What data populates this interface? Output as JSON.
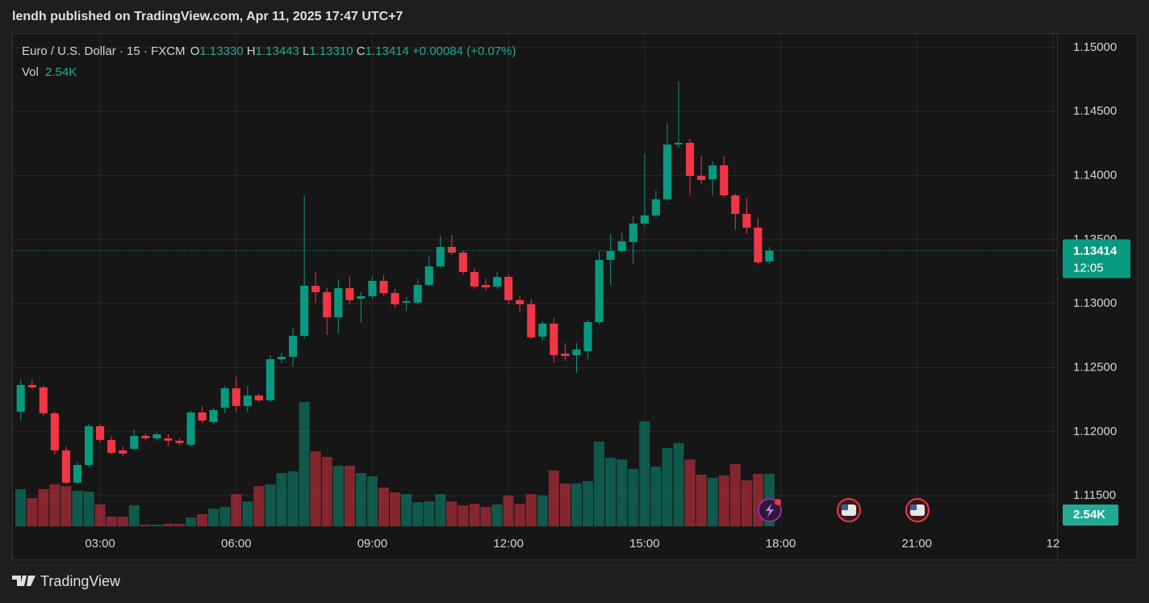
{
  "header": {
    "text": "lendh published on TradingView.com, Apr 11, 2025 17:47 UTC+7"
  },
  "footer": {
    "brand": "TradingView"
  },
  "chart_data": {
    "type": "candlestick",
    "legend": {
      "symbol": "Euro / U.S. Dollar · 15 · FXCM",
      "o_label": "O",
      "open": "1.13330",
      "h_label": "H",
      "high": "1.13443",
      "l_label": "L",
      "low": "1.13310",
      "c_label": "C",
      "close": "1.13414",
      "change": "+0.00084 (+0.07%)",
      "vol_label": "Vol",
      "volume": "2.54K"
    },
    "last_price_label": "1.13414",
    "countdown": "12:05",
    "volume_axis_label": "2.54K",
    "up_color": "#089981",
    "down_color": "#f23645",
    "grid": true,
    "x": [
      1.25,
      1.5,
      1.75,
      2,
      2.25,
      2.5,
      2.75,
      3,
      3.25,
      3.5,
      3.75,
      4,
      4.25,
      4.5,
      4.75,
      5,
      5.25,
      5.5,
      5.75,
      6,
      6.25,
      6.5,
      6.75,
      7,
      7.25,
      7.5,
      7.75,
      8,
      8.25,
      8.5,
      8.75,
      9,
      9.25,
      9.5,
      9.75,
      10,
      10.25,
      10.5,
      10.75,
      11,
      11.25,
      11.5,
      11.75,
      12,
      12.25,
      12.5,
      12.75,
      13,
      13.25,
      13.5,
      13.75,
      14,
      14.25,
      14.5,
      14.75,
      15,
      15.25,
      15.5,
      15.75,
      16,
      16.25,
      16.5,
      16.75,
      17,
      17.25,
      17.5,
      17.75
    ],
    "open": [
      1.12156,
      1.12365,
      1.12346,
      1.12144,
      1.11854,
      1.11602,
      1.1174,
      1.12043,
      1.11936,
      1.11854,
      1.11866,
      1.11967,
      1.11948,
      1.11948,
      1.1193,
      1.11898,
      1.1215,
      1.12075,
      1.12188,
      1.12339,
      1.12201,
      1.12283,
      1.12245,
      1.12566,
      1.12585,
      1.12749,
      1.1314,
      1.1309,
      1.12894,
      1.13121,
      1.13039,
      1.13058,
      1.13178,
      1.13083,
      1.13008,
      1.13008,
      1.13146,
      1.13291,
      1.13443,
      1.13399,
      1.13247,
      1.13146,
      1.13134,
      1.13209,
      1.13027,
      1.12995,
      1.12743,
      1.12844,
      1.1261,
      1.12598,
      1.12629,
      1.12856,
      1.13342,
      1.13411,
      1.13481,
      1.13626,
      1.13689,
      1.13815,
      1.14243,
      1.14256,
      1.13998,
      1.13972,
      1.1408,
      1.13846,
      1.13701,
      1.13594,
      1.1333
    ],
    "high": [
      1.12409,
      1.12409,
      1.12358,
      1.12156,
      1.11885,
      1.11766,
      1.12062,
      1.12056,
      1.11967,
      1.11885,
      1.12018,
      1.11986,
      1.11993,
      1.1198,
      1.11948,
      1.12163,
      1.12201,
      1.12188,
      1.12358,
      1.12428,
      1.12358,
      1.12295,
      1.12598,
      1.12617,
      1.12812,
      1.13846,
      1.13247,
      1.13127,
      1.1319,
      1.13216,
      1.1309,
      1.13209,
      1.13222,
      1.13115,
      1.13052,
      1.13197,
      1.13367,
      1.13531,
      1.13537,
      1.13417,
      1.13279,
      1.13197,
      1.13247,
      1.13228,
      1.13058,
      1.13039,
      1.12863,
      1.12888,
      1.12692,
      1.12692,
      1.12875,
      1.13411,
      1.13544,
      1.13556,
      1.13689,
      1.14168,
      1.13884,
      1.14407,
      1.14735,
      1.14288,
      1.14155,
      1.14111,
      1.14155,
      1.13859,
      1.13827,
      1.1367,
      1.13443
    ],
    "low": [
      1.12093,
      1.12333,
      1.12125,
      1.11822,
      1.11589,
      1.11589,
      1.11728,
      1.11917,
      1.11822,
      1.1181,
      1.11854,
      1.1193,
      1.1193,
      1.11885,
      1.11892,
      1.11885,
      1.12068,
      1.12056,
      1.12144,
      1.12156,
      1.12156,
      1.12232,
      1.12232,
      1.12535,
      1.1251,
      1.12724,
      1.13008,
      1.12755,
      1.12768,
      1.12995,
      1.1285,
      1.13039,
      1.13064,
      1.1297,
      1.12945,
      1.12995,
      1.13134,
      1.13279,
      1.1338,
      1.13228,
      1.13115,
      1.13102,
      1.13115,
      1.12995,
      1.12932,
      1.12724,
      1.12711,
      1.12535,
      1.12554,
      1.12459,
      1.12566,
      1.12837,
      1.13146,
      1.13399,
      1.1331,
      1.13607,
      1.1367,
      1.13802,
      1.14218,
      1.13846,
      1.13935,
      1.13846,
      1.13827,
      1.13575,
      1.13544,
      1.13304,
      1.1331
    ],
    "close": [
      1.12365,
      1.12346,
      1.12144,
      1.11854,
      1.11602,
      1.1174,
      1.12043,
      1.11936,
      1.11835,
      1.11829,
      1.11967,
      1.11948,
      1.1198,
      1.1193,
      1.11911,
      1.1215,
      1.12087,
      1.12169,
      1.12339,
      1.12201,
      1.12283,
      1.12245,
      1.12566,
      1.12585,
      1.12749,
      1.1314,
      1.1309,
      1.12894,
      1.13121,
      1.13027,
      1.13058,
      1.13178,
      1.13083,
      1.12995,
      1.1302,
      1.13146,
      1.13291,
      1.13443,
      1.13399,
      1.13247,
      1.13134,
      1.13127,
      1.13209,
      1.13027,
      1.12995,
      1.12736,
      1.12844,
      1.12598,
      1.12591,
      1.12642,
      1.12856,
      1.13342,
      1.13411,
      1.13487,
      1.13626,
      1.13689,
      1.13815,
      1.14243,
      1.14256,
      1.13998,
      1.13966,
      1.1408,
      1.13846,
      1.13701,
      1.13594,
      1.13323,
      1.13414
    ],
    "volume": [
      1800,
      1370,
      1800,
      2030,
      1950,
      1720,
      1680,
      1060,
      470,
      470,
      1020,
      80,
      80,
      120,
      120,
      430,
      590,
      860,
      940,
      1560,
      1210,
      1950,
      2030,
      2580,
      2660,
      6020,
      3630,
      3360,
      2930,
      2930,
      2580,
      2420,
      1880,
      1640,
      1560,
      1170,
      1210,
      1560,
      1210,
      1020,
      1090,
      940,
      1060,
      1490,
      1090,
      1560,
      1490,
      2700,
      2070,
      2070,
      2190,
      4100,
      3320,
      3240,
      2780,
      5080,
      2890,
      3790,
      4030,
      3240,
      2500,
      2350,
      2460,
      3010,
      2230,
      2540,
      2540
    ],
    "xlim": [
      1.06,
      24.09
    ],
    "xticks": [
      {
        "value": 3,
        "label": "03:00"
      },
      {
        "value": 6,
        "label": "06:00"
      },
      {
        "value": 9,
        "label": "09:00"
      },
      {
        "value": 12,
        "label": "12:00"
      },
      {
        "value": 15,
        "label": "15:00"
      },
      {
        "value": 18,
        "label": "18:00"
      },
      {
        "value": 21,
        "label": "21:00"
      },
      {
        "value": 24,
        "label": "12"
      }
    ],
    "ylim": [
      1.11261,
      1.15107
    ],
    "yticks": [
      {
        "value": 1.115,
        "label": "1.11500"
      },
      {
        "value": 1.12,
        "label": "1.12000"
      },
      {
        "value": 1.125,
        "label": "1.12500"
      },
      {
        "value": 1.13,
        "label": "1.13000"
      },
      {
        "value": 1.135,
        "label": "1.13500"
      },
      {
        "value": 1.14,
        "label": "1.14000"
      },
      {
        "value": 1.145,
        "label": "1.14500"
      },
      {
        "value": 1.15,
        "label": "1.15000"
      }
    ]
  }
}
